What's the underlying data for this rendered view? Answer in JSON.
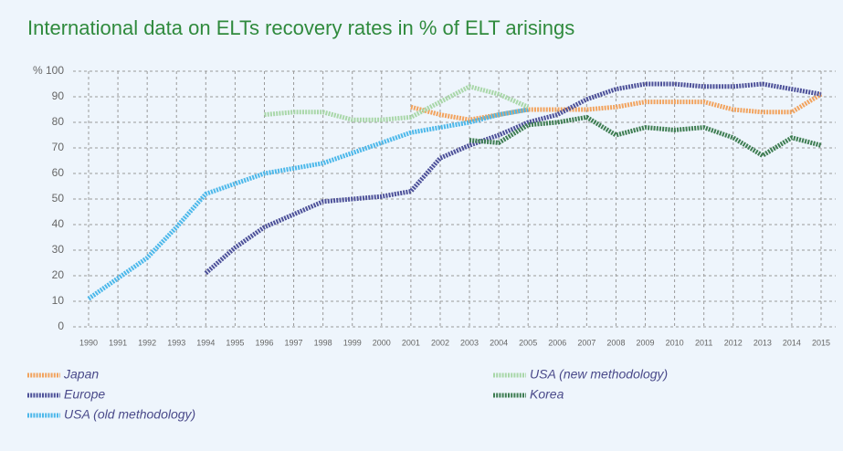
{
  "chart_data": {
    "type": "line",
    "title": "International data on ELTs recovery rates in % of ELT arisings",
    "categories": [
      "1990",
      "1991",
      "1992",
      "1993",
      "1994",
      "1995",
      "1996",
      "1997",
      "1998",
      "1999",
      "2000",
      "2001",
      "2002",
      "2003",
      "2004",
      "2005",
      "2006",
      "2007",
      "2008",
      "2009",
      "2010",
      "2011",
      "2012",
      "2013",
      "2014",
      "2015"
    ],
    "ylim": [
      0,
      100
    ],
    "yticks": [
      0,
      10,
      20,
      30,
      40,
      50,
      60,
      70,
      80,
      90,
      {
        "value": 100,
        "label": "% 100"
      }
    ],
    "grid": true,
    "series": [
      {
        "name": "Japan",
        "color": "#f2a35e",
        "values": [
          null,
          null,
          null,
          null,
          null,
          null,
          null,
          null,
          null,
          null,
          null,
          86,
          83,
          81,
          83,
          85,
          85,
          85,
          86,
          88,
          88,
          88,
          85,
          84,
          84,
          91
        ]
      },
      {
        "name": "Europe",
        "color": "#4d5199",
        "values": [
          null,
          null,
          null,
          null,
          21,
          31,
          39,
          44,
          49,
          50,
          51,
          53,
          66,
          71,
          75,
          80,
          83,
          89,
          93,
          95,
          95,
          94,
          94,
          95,
          93,
          91
        ]
      },
      {
        "name": "USA (old methodology)",
        "color": "#4cb8ea",
        "values": [
          11,
          19,
          27,
          39,
          52,
          56,
          60,
          62,
          64,
          68,
          72,
          76,
          78,
          80,
          83,
          85,
          null,
          null,
          null,
          null,
          null,
          null,
          null,
          null,
          null,
          null
        ]
      },
      {
        "name": "USA (new methodology)",
        "color": "#a9d7a9",
        "values": [
          null,
          null,
          null,
          null,
          null,
          null,
          83,
          84,
          84,
          81,
          81,
          82,
          88,
          94,
          91,
          86,
          null,
          null,
          null,
          null,
          null,
          null,
          null,
          null,
          null,
          null
        ]
      },
      {
        "name": "Korea",
        "color": "#3e7d52",
        "values": [
          null,
          null,
          null,
          null,
          null,
          null,
          null,
          null,
          null,
          null,
          null,
          null,
          null,
          73,
          72,
          79,
          80,
          82,
          75,
          78,
          77,
          78,
          74,
          67,
          74,
          71
        ]
      }
    ]
  }
}
